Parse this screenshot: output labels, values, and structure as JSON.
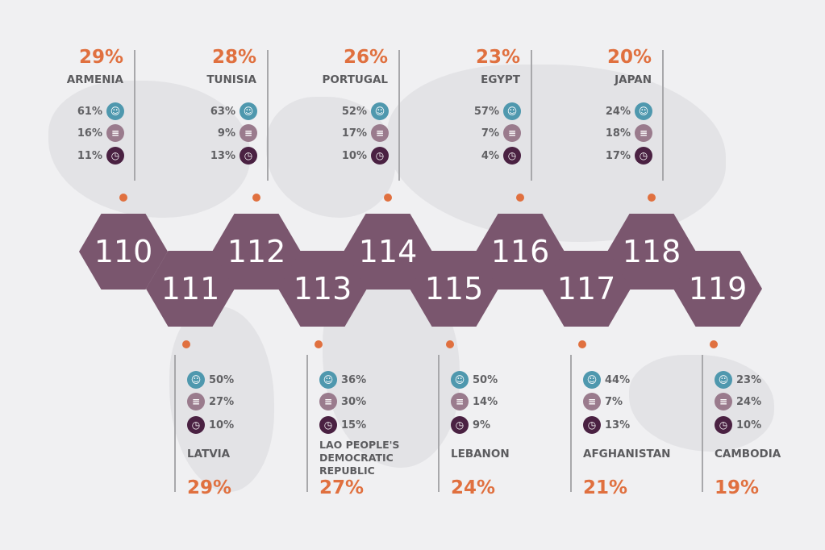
{
  "colors": {
    "accent": "#e0703f",
    "hex": "#7a566e",
    "people": "#4f98ae",
    "coins": "#9a7b8d",
    "clock": "#4a2142"
  },
  "icons": [
    "people-hand-icon",
    "coins-icon",
    "clock-icon"
  ],
  "top": [
    {
      "rank": "110",
      "country": "ARMENIA",
      "percent": "29%",
      "stats": [
        "61%",
        "16%",
        "11%"
      ]
    },
    {
      "rank": "112",
      "country": "TUNISIA",
      "percent": "28%",
      "stats": [
        "63%",
        "9%",
        "13%"
      ]
    },
    {
      "rank": "114",
      "country": "PORTUGAL",
      "percent": "26%",
      "stats": [
        "52%",
        "17%",
        "10%"
      ]
    },
    {
      "rank": "116",
      "country": "EGYPT",
      "percent": "23%",
      "stats": [
        "57%",
        "7%",
        "4%"
      ]
    },
    {
      "rank": "118",
      "country": "JAPAN",
      "percent": "20%",
      "stats": [
        "24%",
        "18%",
        "17%"
      ]
    }
  ],
  "bottom": [
    {
      "rank": "111",
      "country": "LATVIA",
      "percent": "29%",
      "stats": [
        "50%",
        "27%",
        "10%"
      ]
    },
    {
      "rank": "113",
      "country": "LAO PEOPLE'S DEMOCRATIC REPUBLIC",
      "percent": "27%",
      "stats": [
        "36%",
        "30%",
        "15%"
      ]
    },
    {
      "rank": "115",
      "country": "LEBANON",
      "percent": "24%",
      "stats": [
        "50%",
        "14%",
        "9%"
      ]
    },
    {
      "rank": "117",
      "country": "AFGHANISTAN",
      "percent": "21%",
      "stats": [
        "44%",
        "7%",
        "13%"
      ]
    },
    {
      "rank": "119",
      "country": "CAMBODIA",
      "percent": "19%",
      "stats": [
        "23%",
        "24%",
        "10%"
      ]
    }
  ]
}
